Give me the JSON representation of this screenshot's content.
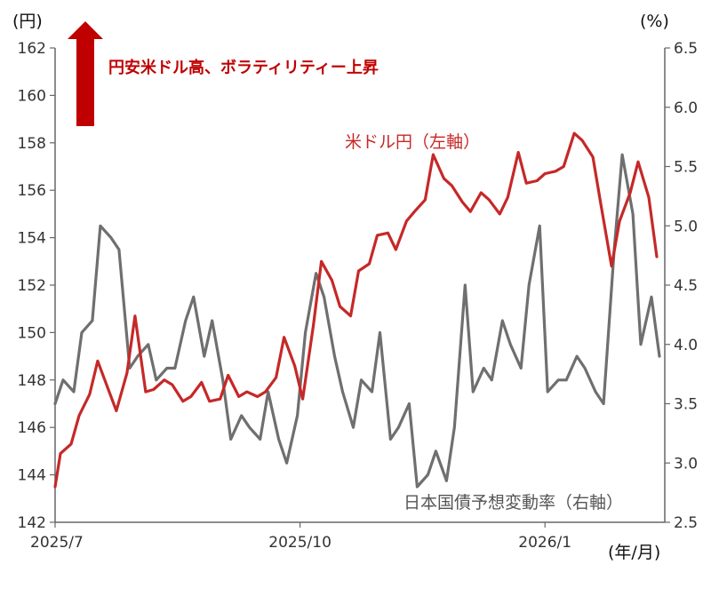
{
  "chart_data": {
    "type": "line",
    "left_axis": {
      "unit": "(円)",
      "ylim": [
        142,
        162
      ],
      "ticks": [
        "142",
        "144",
        "146",
        "148",
        "150",
        "152",
        "154",
        "156",
        "158",
        "160",
        "162"
      ]
    },
    "right_axis": {
      "unit": "(%)",
      "ylim": [
        2.5,
        6.5
      ],
      "ticks": [
        "2.5",
        "3.0",
        "3.5",
        "4.0",
        "4.5",
        "5.0",
        "5.5",
        "6.0",
        "6.5"
      ]
    },
    "x_axis": {
      "unit": "(年/月)",
      "range": [
        "2025-07-01",
        "2026-02-15"
      ],
      "ticks": [
        "2025/7",
        "2025/10",
        "2026/1"
      ]
    },
    "annotation": "円安米ドル高、ボラティリティー上昇",
    "colors": {
      "usdjpy": "#c62828",
      "volatility": "#6f6f6f",
      "arrow": "#c00000"
    },
    "series": [
      {
        "name": "米ドル円（左軸）",
        "axis": "left",
        "points": [
          [
            "2025-07-01",
            143.5
          ],
          [
            "2025-07-03",
            144.9
          ],
          [
            "2025-07-07",
            145.3
          ],
          [
            "2025-07-10",
            146.5
          ],
          [
            "2025-07-14",
            147.4
          ],
          [
            "2025-07-17",
            148.8
          ],
          [
            "2025-07-21",
            147.6
          ],
          [
            "2025-07-24",
            146.7
          ],
          [
            "2025-07-28",
            148.3
          ],
          [
            "2025-07-31",
            150.7
          ],
          [
            "2025-08-04",
            147.5
          ],
          [
            "2025-08-07",
            147.6
          ],
          [
            "2025-08-11",
            148.0
          ],
          [
            "2025-08-14",
            147.8
          ],
          [
            "2025-08-18",
            147.1
          ],
          [
            "2025-08-21",
            147.3
          ],
          [
            "2025-08-25",
            147.9
          ],
          [
            "2025-08-28",
            147.1
          ],
          [
            "2025-09-01",
            147.2
          ],
          [
            "2025-09-04",
            148.2
          ],
          [
            "2025-09-08",
            147.3
          ],
          [
            "2025-09-11",
            147.5
          ],
          [
            "2025-09-15",
            147.3
          ],
          [
            "2025-09-18",
            147.5
          ],
          [
            "2025-09-22",
            148.1
          ],
          [
            "2025-09-25",
            149.8
          ],
          [
            "2025-09-29",
            148.6
          ],
          [
            "2025-10-02",
            147.2
          ],
          [
            "2025-10-06",
            150.3
          ],
          [
            "2025-10-09",
            153.0
          ],
          [
            "2025-10-13",
            152.2
          ],
          [
            "2025-10-16",
            151.1
          ],
          [
            "2025-10-20",
            150.7
          ],
          [
            "2025-10-23",
            152.6
          ],
          [
            "2025-10-27",
            152.9
          ],
          [
            "2025-10-30",
            154.1
          ],
          [
            "2025-11-03",
            154.2
          ],
          [
            "2025-11-06",
            153.5
          ],
          [
            "2025-11-10",
            154.7
          ],
          [
            "2025-11-13",
            155.1
          ],
          [
            "2025-11-17",
            155.6
          ],
          [
            "2025-11-20",
            157.5
          ],
          [
            "2025-11-24",
            156.5
          ],
          [
            "2025-11-27",
            156.2
          ],
          [
            "2025-12-01",
            155.5
          ],
          [
            "2025-12-04",
            155.1
          ],
          [
            "2025-12-08",
            155.9
          ],
          [
            "2025-12-11",
            155.6
          ],
          [
            "2025-12-15",
            155.0
          ],
          [
            "2025-12-18",
            155.7
          ],
          [
            "2025-12-22",
            157.6
          ],
          [
            "2025-12-25",
            156.3
          ],
          [
            "2025-12-29",
            156.4
          ],
          [
            "2026-01-01",
            156.7
          ],
          [
            "2026-01-05",
            156.8
          ],
          [
            "2026-01-08",
            157.0
          ],
          [
            "2026-01-12",
            158.4
          ],
          [
            "2026-01-15",
            158.1
          ],
          [
            "2026-01-19",
            157.4
          ],
          [
            "2026-01-22",
            155.4
          ],
          [
            "2026-01-26",
            152.8
          ],
          [
            "2026-01-29",
            154.7
          ],
          [
            "2026-02-02",
            155.9
          ],
          [
            "2026-02-05",
            157.2
          ],
          [
            "2026-02-09",
            155.7
          ],
          [
            "2026-02-12",
            153.2
          ]
        ]
      },
      {
        "name": "日本国債予想変動率（右軸）",
        "axis": "right",
        "points": [
          [
            "2025-07-01",
            3.5
          ],
          [
            "2025-07-04",
            3.7
          ],
          [
            "2025-07-08",
            3.6
          ],
          [
            "2025-07-11",
            4.1
          ],
          [
            "2025-07-15",
            4.2
          ],
          [
            "2025-07-18",
            5.0
          ],
          [
            "2025-07-22",
            4.9
          ],
          [
            "2025-07-25",
            4.8
          ],
          [
            "2025-07-29",
            3.8
          ],
          [
            "2025-08-01",
            3.9
          ],
          [
            "2025-08-05",
            4.0
          ],
          [
            "2025-08-08",
            3.7
          ],
          [
            "2025-08-12",
            3.8
          ],
          [
            "2025-08-15",
            3.8
          ],
          [
            "2025-08-19",
            4.2
          ],
          [
            "2025-08-22",
            4.4
          ],
          [
            "2025-08-26",
            3.9
          ],
          [
            "2025-08-29",
            4.2
          ],
          [
            "2025-09-02",
            3.7
          ],
          [
            "2025-09-05",
            3.2
          ],
          [
            "2025-09-09",
            3.4
          ],
          [
            "2025-09-12",
            3.3
          ],
          [
            "2025-09-16",
            3.2
          ],
          [
            "2025-09-19",
            3.6
          ],
          [
            "2025-09-23",
            3.2
          ],
          [
            "2025-09-26",
            3.0
          ],
          [
            "2025-09-30",
            3.4
          ],
          [
            "2025-10-03",
            4.1
          ],
          [
            "2025-10-07",
            4.6
          ],
          [
            "2025-10-10",
            4.4
          ],
          [
            "2025-10-14",
            3.9
          ],
          [
            "2025-10-17",
            3.6
          ],
          [
            "2025-10-21",
            3.3
          ],
          [
            "2025-10-24",
            3.7
          ],
          [
            "2025-10-28",
            3.6
          ],
          [
            "2025-10-31",
            4.1
          ],
          [
            "2025-11-04",
            3.2
          ],
          [
            "2025-11-07",
            3.3
          ],
          [
            "2025-11-11",
            3.5
          ],
          [
            "2025-11-14",
            2.8
          ],
          [
            "2025-11-18",
            2.9
          ],
          [
            "2025-11-21",
            3.1
          ],
          [
            "2025-11-25",
            2.85
          ],
          [
            "2025-11-28",
            3.3
          ],
          [
            "2025-12-02",
            4.5
          ],
          [
            "2025-12-05",
            3.6
          ],
          [
            "2025-12-09",
            3.8
          ],
          [
            "2025-12-12",
            3.7
          ],
          [
            "2025-12-16",
            4.2
          ],
          [
            "2025-12-19",
            4.0
          ],
          [
            "2025-12-23",
            3.8
          ],
          [
            "2025-12-26",
            4.5
          ],
          [
            "2025-12-30",
            5.0
          ],
          [
            "2026-01-02",
            3.6
          ],
          [
            "2026-01-06",
            3.7
          ],
          [
            "2026-01-09",
            3.7
          ],
          [
            "2026-01-13",
            3.9
          ],
          [
            "2026-01-16",
            3.8
          ],
          [
            "2026-01-20",
            3.6
          ],
          [
            "2026-01-23",
            3.5
          ],
          [
            "2026-01-27",
            4.8
          ],
          [
            "2026-01-30",
            5.6
          ],
          [
            "2026-02-03",
            5.1
          ],
          [
            "2026-02-06",
            4.0
          ],
          [
            "2026-02-10",
            4.4
          ],
          [
            "2026-02-13",
            3.9
          ]
        ]
      }
    ]
  }
}
